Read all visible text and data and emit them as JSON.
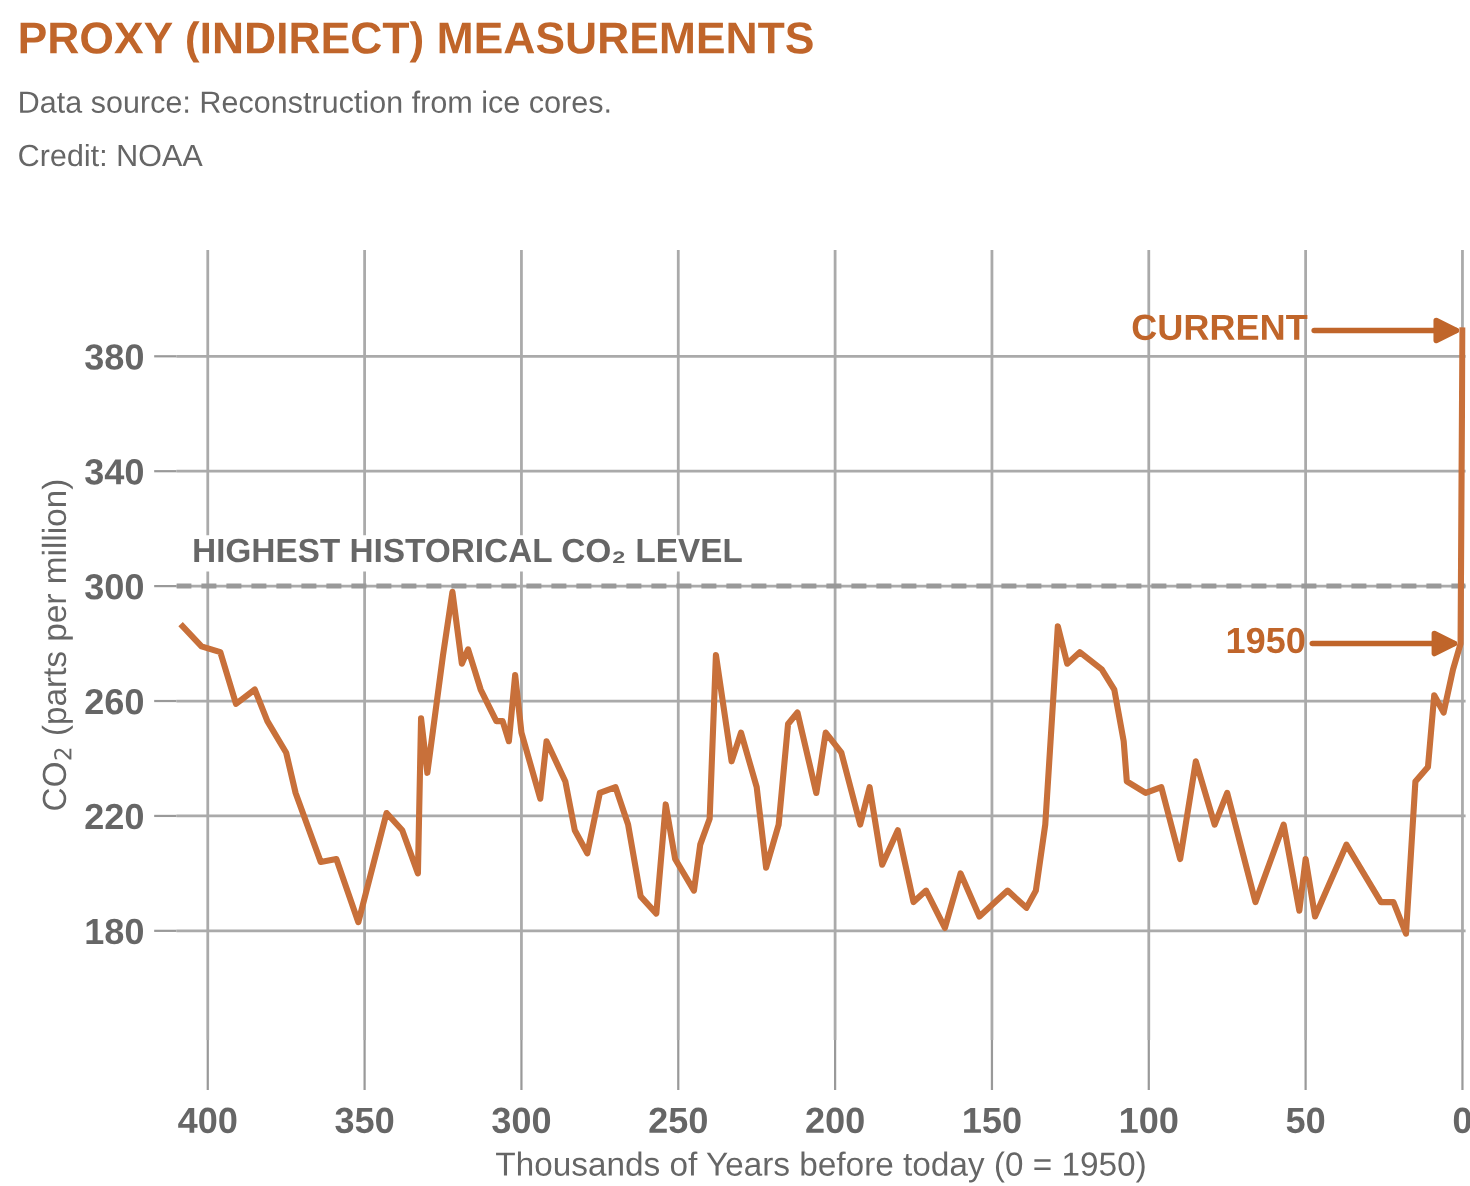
{
  "chart_data": {
    "type": "line",
    "title": "PROXY (INDIRECT) MEASUREMENTS",
    "subtitle": "Data source: Reconstruction from ice cores.",
    "xlabel": "Thousands of Years before today (0 = 1950)",
    "ylabel": "CO$_{2}$ (parts per million)",
    "annotations": [
      "Credit: NOAA",
      "CURRENT",
      "1950"
    ],
    "x": [
      408,
      402,
      396,
      391,
      385,
      381,
      375,
      372,
      364,
      359,
      352,
      343,
      338,
      333,
      332,
      330,
      325,
      322,
      319,
      317,
      315,
      313,
      308,
      306,
      304,
      302,
      300,
      294,
      292,
      286,
      283,
      279,
      275,
      270,
      266,
      262,
      257,
      254,
      251,
      245,
      243,
      240,
      238,
      233,
      230,
      225,
      222,
      218,
      215,
      212,
      206,
      203,
      198,
      192,
      189,
      185,
      180,
      175,
      171,
      165,
      160,
      154,
      145,
      139,
      136,
      133,
      129,
      126,
      122,
      115,
      111,
      108,
      107,
      101,
      96,
      90,
      85,
      79,
      75,
      66,
      57,
      52,
      50,
      47,
      37,
      26,
      22,
      18,
      15,
      11,
      9,
      6,
      3,
      0.6,
      0
    ],
    "series": [
      {
        "color": "#c8703a",
        "values": [
          286,
          279,
          277,
          259,
          264,
          253,
          242,
          228,
          204,
          205,
          183,
          221,
          215,
          200,
          254,
          235,
          276,
          298,
          273,
          278,
          271,
          264,
          253,
          253,
          246,
          269,
          249,
          226,
          246,
          232,
          215,
          207,
          228,
          230,
          217,
          192,
          186,
          224,
          205,
          194,
          210,
          219,
          276,
          239,
          249,
          230,
          202,
          217,
          252,
          256,
          228,
          249,
          242,
          217,
          230,
          203,
          215,
          190,
          194,
          181,
          200,
          185,
          194,
          188,
          194,
          217,
          286,
          273,
          277,
          271,
          264,
          246,
          232,
          228,
          230,
          205,
          239,
          217,
          228,
          190,
          217,
          187,
          205,
          185,
          210,
          190,
          190,
          179,
          232,
          237,
          262,
          256,
          271,
          280,
          389
        ]
      }
    ],
    "xlim": [
      410,
      -1
    ],
    "ylim": [
      142,
      417
    ],
    "xticks": [
      400,
      350,
      300,
      250,
      200,
      150,
      100,
      50,
      0
    ],
    "yticks": [
      180,
      220,
      260,
      300,
      340,
      380
    ],
    "grid": true,
    "ref_lines": [
      {
        "axis": "y",
        "value": 300,
        "label": "HIGHEST HISTORICAL CO₂ LEVEL",
        "color": "#999999",
        "line_style": "dashed"
      }
    ]
  }
}
